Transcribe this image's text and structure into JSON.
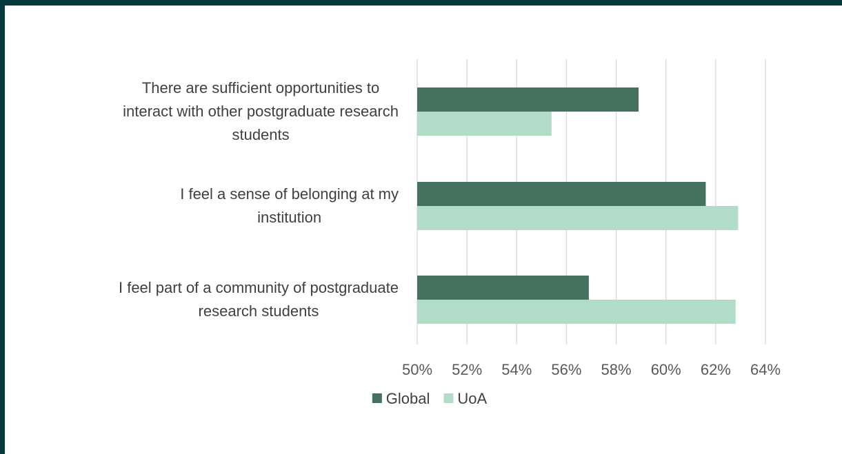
{
  "chart_data": {
    "type": "bar",
    "orientation": "horizontal",
    "categories": [
      [
        "There are sufficient opportunities to",
        "interact with other postgraduate research",
        "students"
      ],
      [
        "I feel a sense of belonging at my",
        "institution"
      ],
      [
        "I feel part of a community of postgraduate",
        "research students"
      ]
    ],
    "series": [
      {
        "name": "Global",
        "color": "#45725f",
        "values": [
          58.9,
          61.6,
          56.9
        ]
      },
      {
        "name": "UoA",
        "color": "#b0dcc8",
        "values": [
          55.4,
          62.9,
          62.8
        ]
      }
    ],
    "xlim": [
      50,
      64
    ],
    "xticks": [
      50,
      52,
      54,
      56,
      58,
      60,
      62,
      64
    ],
    "tick_format": "{v}%",
    "grid": true,
    "legend_position": "bottom"
  }
}
